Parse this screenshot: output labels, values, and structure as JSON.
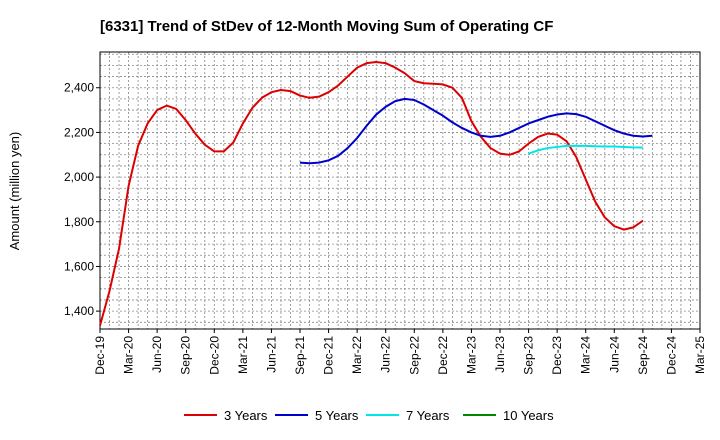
{
  "chart_data": {
    "type": "line",
    "title": "[6331]  Trend of StDev of 12-Month Moving Sum of Operating CF",
    "xlabel": "",
    "ylabel": "Amount (million yen)",
    "ylim": [
      1320,
      2560
    ],
    "yticks": [
      1400,
      1600,
      1800,
      2000,
      2200,
      2400
    ],
    "ytick_labels": [
      "1,400",
      "1,600",
      "1,800",
      "2,000",
      "2,200",
      "2,400"
    ],
    "x_categories": [
      "Dec-19",
      "Mar-20",
      "Jun-20",
      "Sep-20",
      "Dec-20",
      "Mar-21",
      "Jun-21",
      "Sep-21",
      "Dec-21",
      "Mar-22",
      "Jun-22",
      "Sep-22",
      "Dec-22",
      "Mar-23",
      "Jun-23",
      "Sep-23",
      "Dec-23",
      "Mar-24",
      "Jun-24",
      "Sep-24",
      "Dec-24",
      "Mar-25"
    ],
    "grid": true,
    "legend_position": "bottom",
    "series": [
      {
        "name": "3 Years",
        "color": "#dd0000",
        "start_index": 0,
        "values": [
          1335,
          1490,
          1680,
          1960,
          2140,
          2240,
          2300,
          2320,
          2305,
          2255,
          2195,
          2145,
          2115,
          2115,
          2155,
          2240,
          2310,
          2355,
          2380,
          2390,
          2385,
          2365,
          2355,
          2360,
          2380,
          2410,
          2450,
          2490,
          2510,
          2515,
          2510,
          2490,
          2465,
          2430,
          2420,
          2418,
          2415,
          2400,
          2355,
          2250,
          2180,
          2130,
          2105,
          2100,
          2115,
          2150,
          2180,
          2195,
          2190,
          2160,
          2090,
          1990,
          1890,
          1820,
          1780,
          1765,
          1775,
          1805
        ]
      },
      {
        "name": "5 Years",
        "color": "#0000cc",
        "start_index": 21,
        "values": [
          2065,
          2062,
          2065,
          2075,
          2095,
          2130,
          2175,
          2230,
          2280,
          2315,
          2340,
          2350,
          2345,
          2325,
          2300,
          2275,
          2245,
          2220,
          2200,
          2185,
          2180,
          2185,
          2200,
          2220,
          2240,
          2255,
          2270,
          2280,
          2285,
          2282,
          2270,
          2250,
          2230,
          2210,
          2195,
          2185,
          2182,
          2185
        ]
      },
      {
        "name": "7 Years",
        "color": "#00e5e5",
        "start_index": 45,
        "values": [
          2105,
          2120,
          2130,
          2135,
          2140,
          2140,
          2140,
          2138,
          2137,
          2137,
          2135,
          2133,
          2132
        ]
      },
      {
        "name": "10 Years",
        "color": "#008800",
        "start_index": 0,
        "values": []
      }
    ]
  }
}
